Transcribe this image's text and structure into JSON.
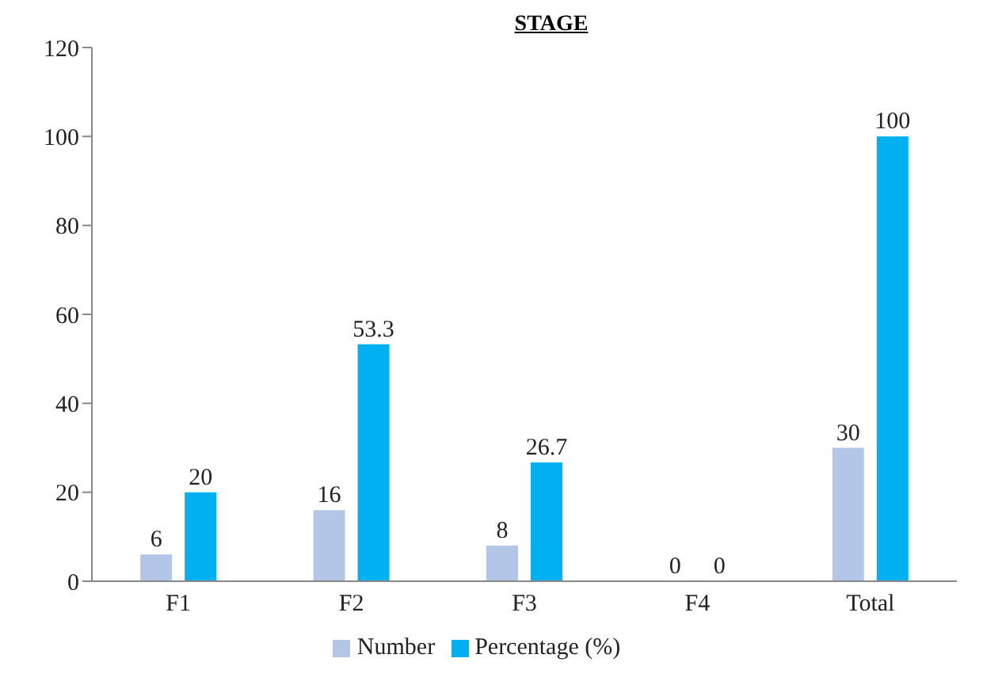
{
  "chart_data": {
    "type": "bar",
    "title": "STAGE",
    "categories": [
      "F1",
      "F2",
      "F3",
      "F4",
      "Total"
    ],
    "series": [
      {
        "name": "Number",
        "color": "#b4c6e7",
        "values": [
          6,
          16,
          8,
          0,
          30
        ]
      },
      {
        "name": "Percentage (%)",
        "color": "#00b0f0",
        "values": [
          20,
          53.3,
          26.7,
          0,
          100
        ]
      }
    ],
    "ylim": [
      0,
      120
    ],
    "yticks": [
      0,
      20,
      40,
      60,
      80,
      100,
      120
    ],
    "grid": false,
    "legend": "bottom",
    "data_labels": true
  }
}
